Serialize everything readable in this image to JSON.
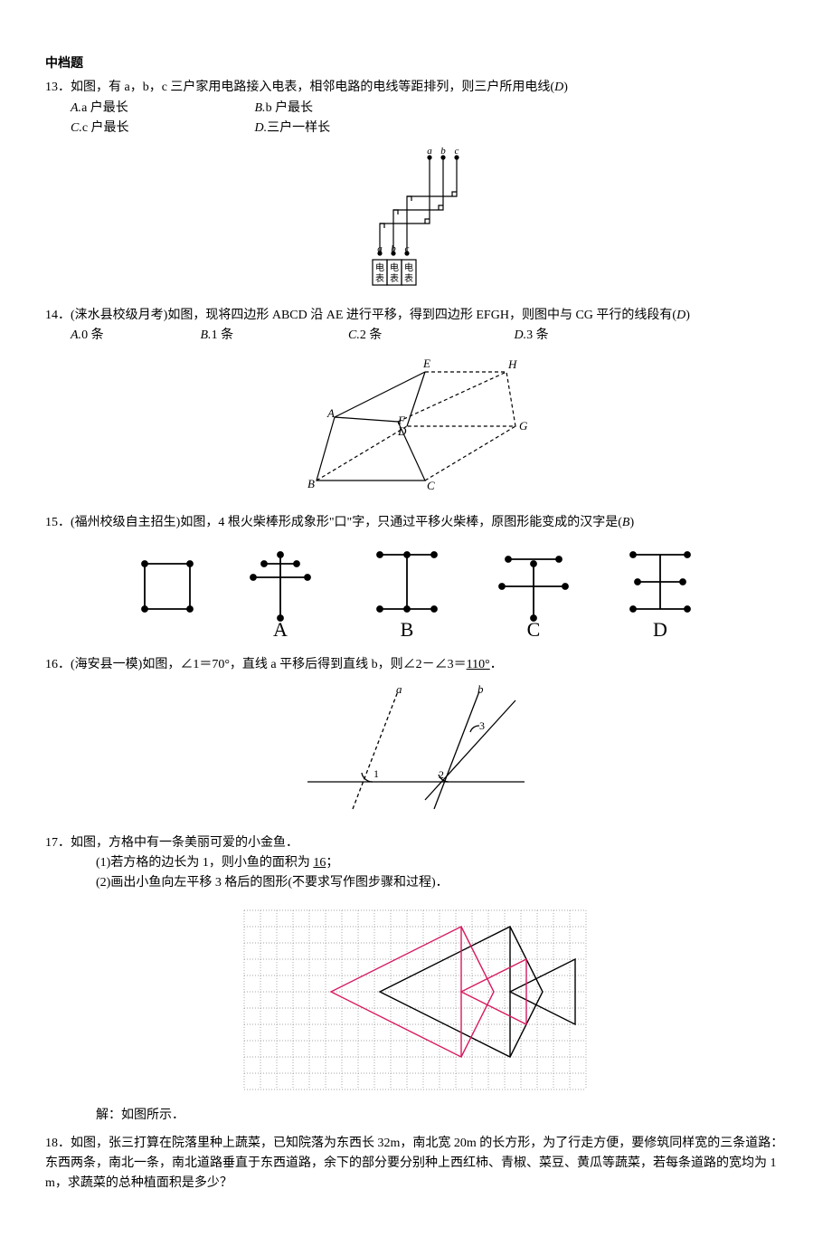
{
  "section_title": "中档题",
  "q13": {
    "num": "13．",
    "text": "如图，有 a，b，c 三户家用电路接入电表，相邻电路的电线等距排列，则三户所用电线(",
    "answer": "D",
    "close": ")",
    "opt_a_label": "A.",
    "opt_a": " a 户最长",
    "opt_b_label": "B.",
    "opt_b": " b 户最长",
    "opt_c_label": "C.",
    "opt_c": " c 户最长",
    "opt_d_label": "D.",
    "opt_d": " 三户一样长",
    "fig": {
      "labels_top": [
        "a",
        "b",
        "c"
      ],
      "labels_bottom": [
        "a",
        "b",
        "c"
      ],
      "meter_labels": [
        "电表",
        "电表",
        "电表"
      ],
      "stroke": "#000000",
      "stroke_width": 1.2
    }
  },
  "q14": {
    "num": "14．",
    "source": "(涞水县校级月考)",
    "text": "如图，现将四边形 ABCD 沿 AE 进行平移，得到四边形 EFGH，则图中与 CG 平行的线段有(",
    "answer": "D",
    "close": ")",
    "opt_a_label": "A.",
    "opt_a": " 0 条",
    "opt_b_label": "B.",
    "opt_b": " 1 条",
    "opt_c_label": "C.",
    "opt_c": " 2 条",
    "opt_d_label": "D.",
    "opt_d": " 3 条",
    "fig": {
      "labels": [
        "A",
        "B",
        "C",
        "D",
        "E",
        "F",
        "G",
        "H"
      ],
      "stroke": "#000000",
      "stroke_width": 1.2
    }
  },
  "q15": {
    "num": "15．",
    "source": "(福州校级自主招生)",
    "text": "如图，4 根火柴棒形成象形\"口\"字，只通过平移火柴棒，原图形能变成的汉字是(",
    "answer": "B",
    "close": ")",
    "labels": [
      "A",
      "B",
      "C",
      "D"
    ],
    "fig": {
      "stroke": "#000000",
      "stroke_width": 1.5,
      "dot_r": 3
    }
  },
  "q16": {
    "num": "16．",
    "source": "(海安县一模)",
    "text_a": "如图，∠1＝70°，直线 a 平移后得到直线 b，则∠2－∠3＝",
    "answer": "110°",
    "text_b": "．",
    "fig": {
      "labels": [
        "a",
        "b",
        "1",
        "2",
        "3"
      ],
      "stroke": "#000000",
      "stroke_width": 1.2
    }
  },
  "q17": {
    "num": "17．",
    "text": "如图，方格中有一条美丽可爱的小金鱼．",
    "sub1_a": "(1)若方格的边长为 1，则小鱼的面积为 ",
    "sub1_ans": "16",
    "sub1_b": "；",
    "sub2": "(2)画出小鱼向左平移 3 格后的图形(不要求写作图步骤和过程)．",
    "solution_label": "解：如图所示．",
    "fig": {
      "grid_cols": 21,
      "grid_rows": 11,
      "cell": 18,
      "grid_color": "#555555",
      "fish_color": "#000000",
      "fish_shift_color": "#d81b60",
      "stroke_width": 1.3
    }
  },
  "q18": {
    "num": "18．",
    "text": "如图，张三打算在院落里种上蔬菜，已知院落为东西长 32m，南北宽 20m 的长方形，为了行走方便，要修筑同样宽的三条道路：东西两条，南北一条，南北道路垂直于东西道路，余下的部分要分别种上西红柿、青椒、菜豆、黄瓜等蔬菜，若每条道路的宽均为 1 m，求蔬菜的总种植面积是多少？"
  }
}
